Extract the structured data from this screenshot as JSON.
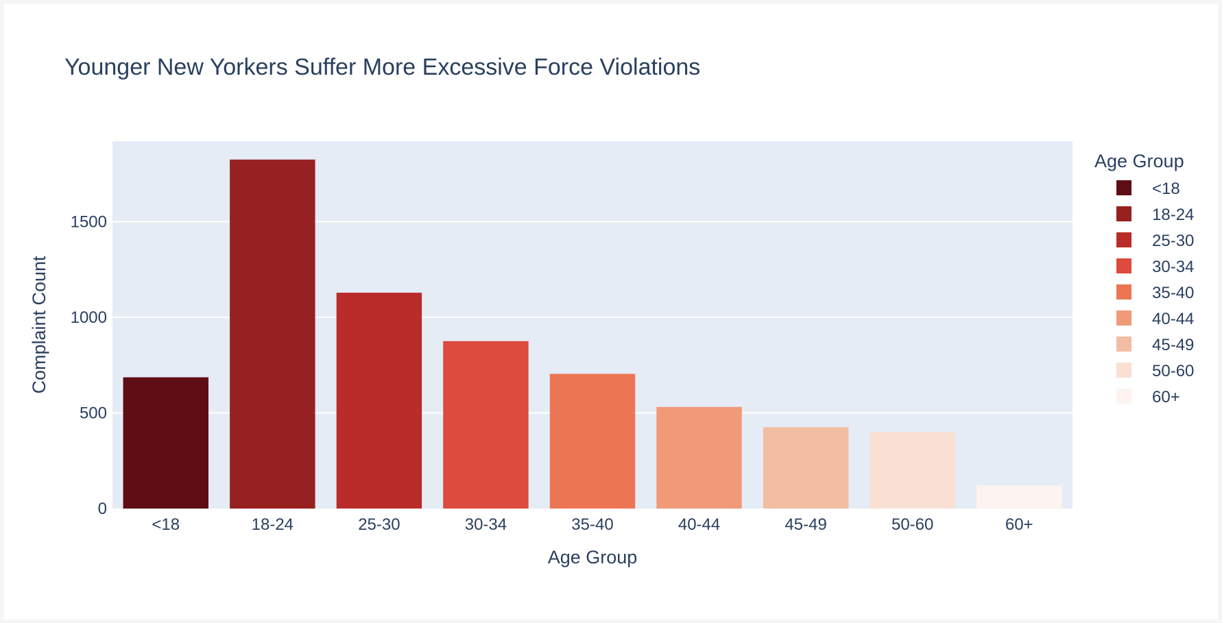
{
  "chart_data": {
    "type": "bar",
    "title": "Younger New Yorkers Suffer More Excessive Force Violations",
    "xlabel": "Age Group",
    "ylabel": "Complaint Count",
    "categories": [
      "<18",
      "18-24",
      "25-30",
      "30-34",
      "35-40",
      "40-44",
      "45-49",
      "50-60",
      "60+"
    ],
    "values": [
      686,
      1824,
      1128,
      875,
      704,
      531,
      425,
      400,
      122
    ],
    "ylim": [
      0,
      1920
    ],
    "yticks": [
      0,
      500,
      1000,
      1500
    ],
    "grid": true,
    "legend": {
      "title": "Age Group",
      "placement": "right",
      "entries": [
        "<18",
        "18-24",
        "25-30",
        "30-34",
        "35-40",
        "40-44",
        "45-49",
        "50-60",
        "60+"
      ]
    },
    "colors": [
      "#5f0d14",
      "#962120",
      "#b92c29",
      "#dc4b3b",
      "#ec7554",
      "#f09a78",
      "#f3bda2",
      "#fae0d3",
      "#fdf3f0"
    ],
    "plot_background": "#e5ecf6",
    "text_color": "#2a3f5f"
  }
}
